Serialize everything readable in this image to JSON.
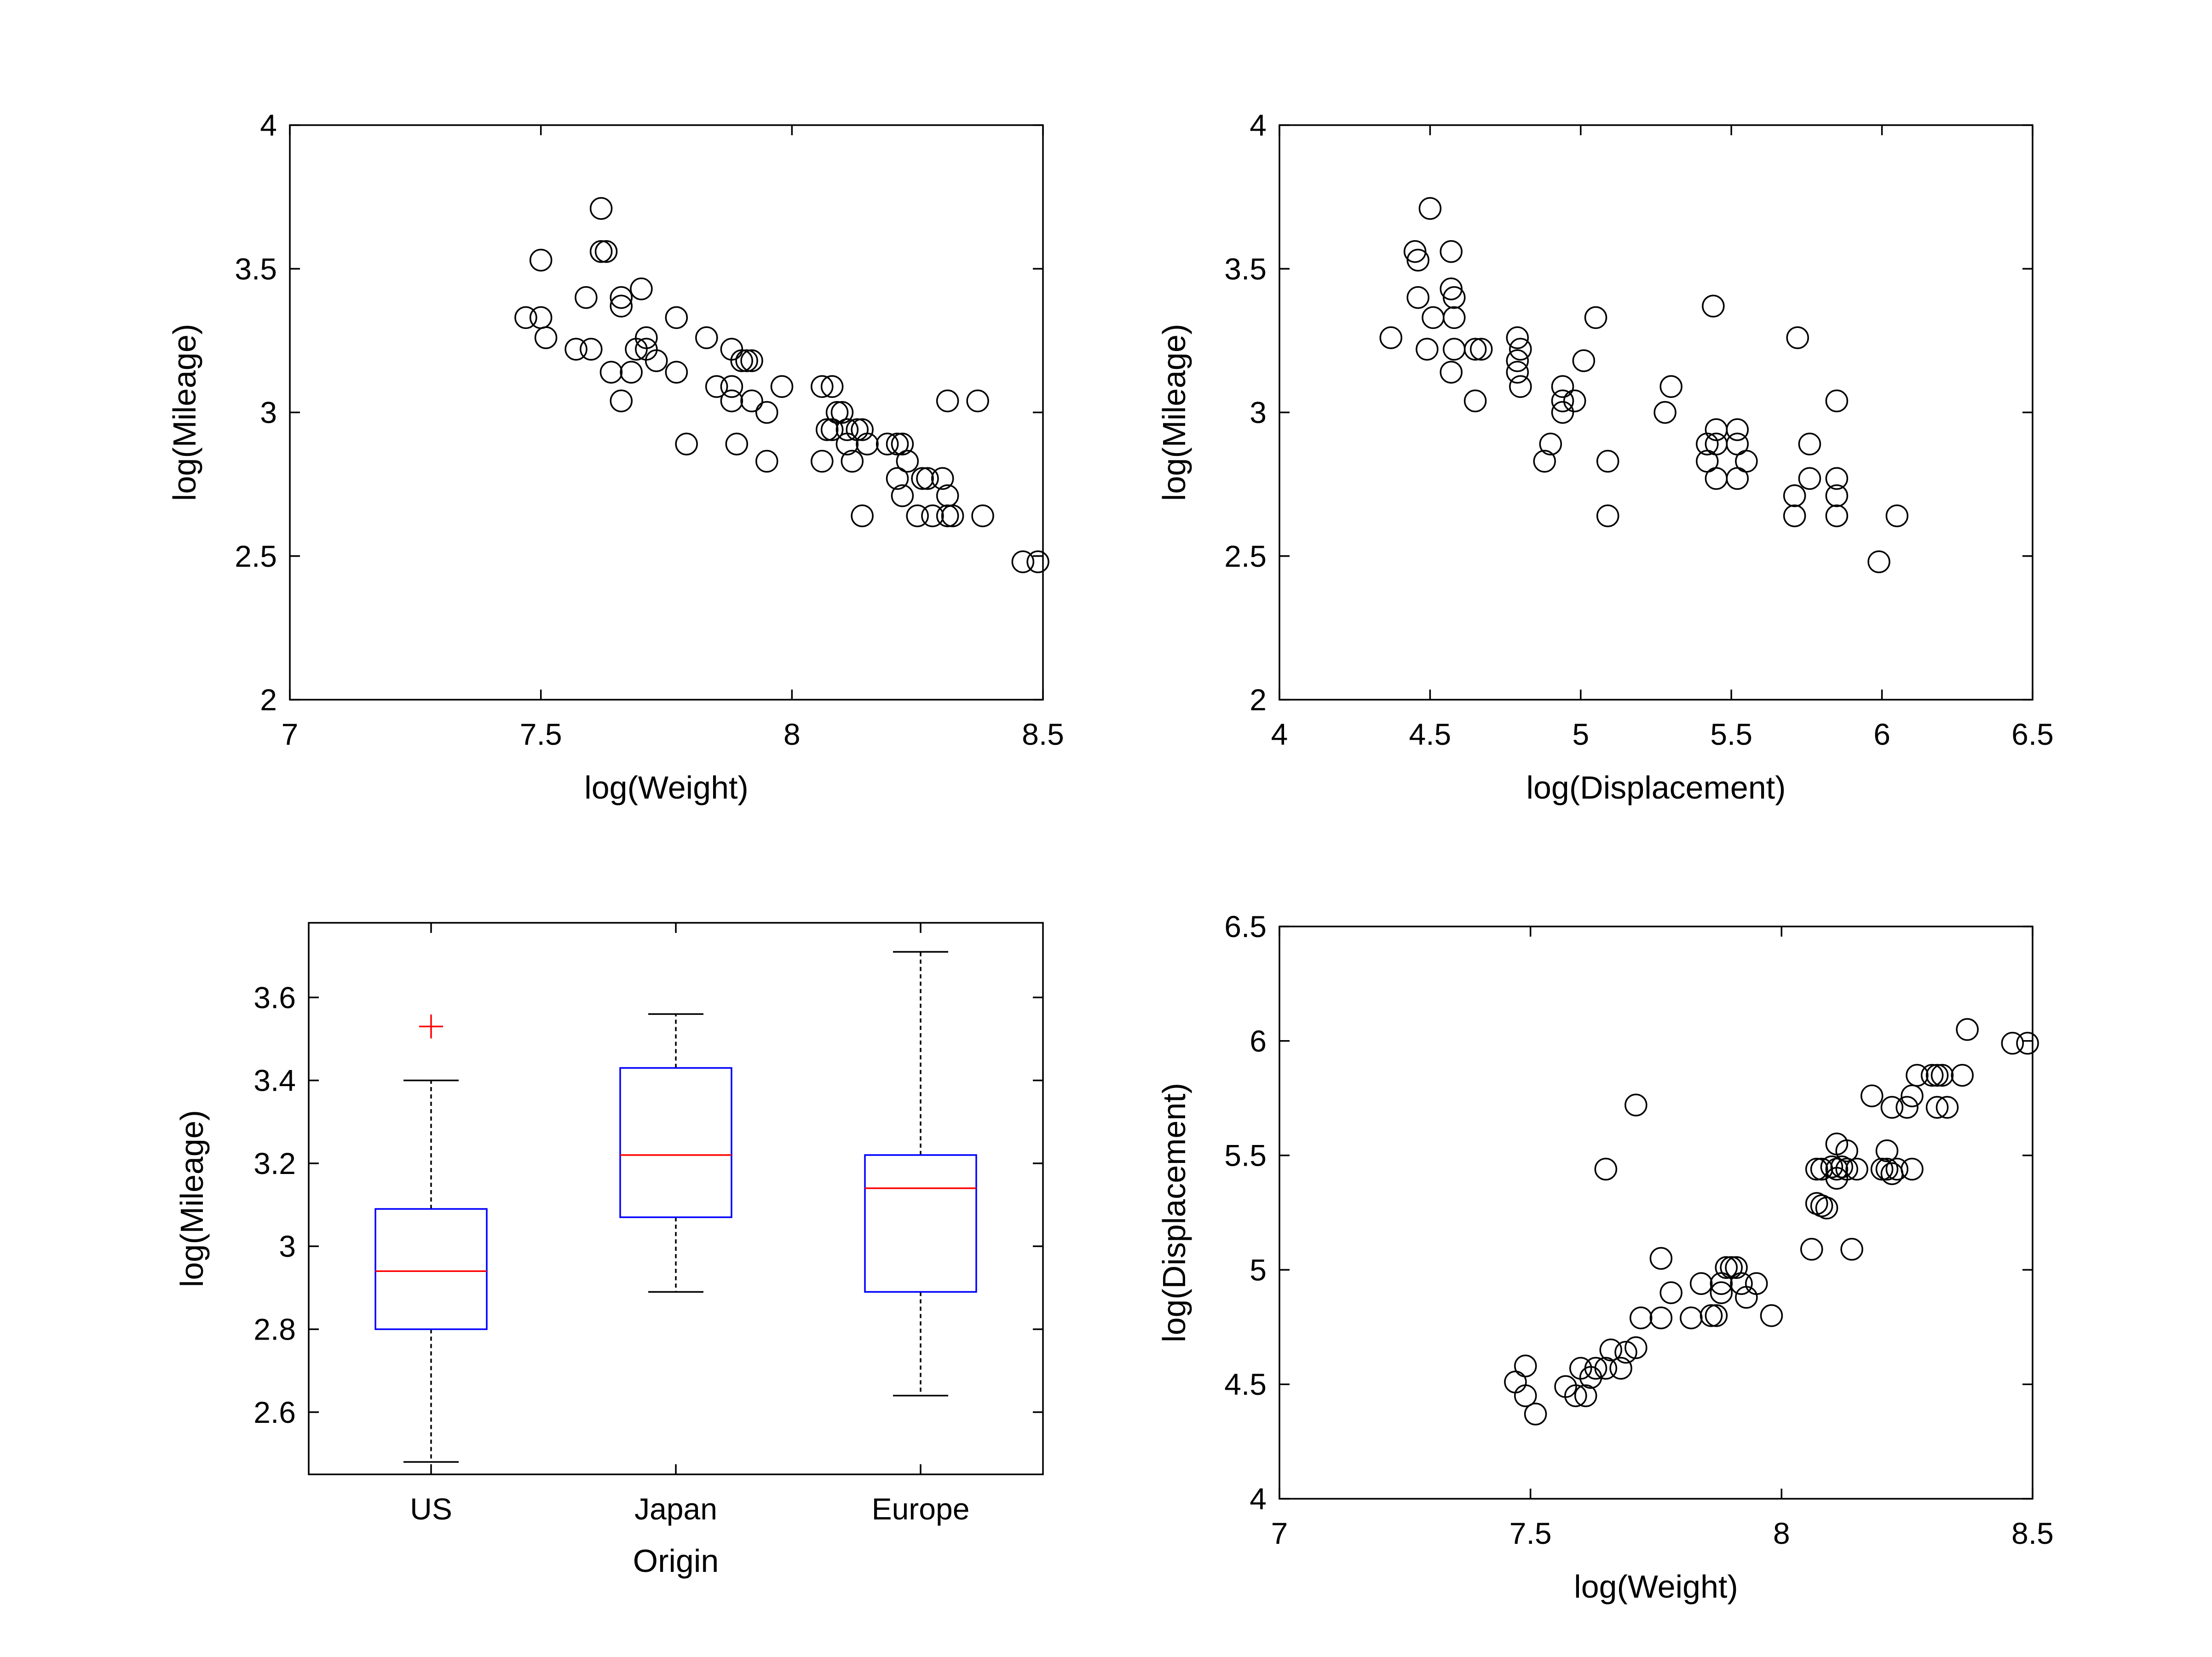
{
  "chart_data": [
    {
      "type": "scatter",
      "xlabel": "log(Weight)",
      "ylabel": "log(Mileage)",
      "xlim": [
        7,
        8.5
      ],
      "ylim": [
        2,
        4
      ],
      "xticks": [
        "7",
        "7.5",
        "8",
        "8.5"
      ],
      "yticks": [
        "2",
        "2.5",
        "3",
        "3.5",
        "4"
      ],
      "marker": "open-circle",
      "points": [
        [
          7.47,
          3.33
        ],
        [
          7.5,
          3.33
        ],
        [
          7.51,
          3.26
        ],
        [
          7.5,
          3.53
        ],
        [
          7.57,
          3.22
        ],
        [
          7.6,
          3.22
        ],
        [
          7.59,
          3.4
        ],
        [
          7.62,
          3.56
        ],
        [
          7.63,
          3.56
        ],
        [
          7.62,
          3.71
        ],
        [
          7.64,
          3.14
        ],
        [
          7.66,
          3.4
        ],
        [
          7.66,
          3.37
        ],
        [
          7.66,
          3.04
        ],
        [
          7.68,
          3.14
        ],
        [
          7.69,
          3.22
        ],
        [
          7.7,
          3.43
        ],
        [
          7.71,
          3.26
        ],
        [
          7.71,
          3.22
        ],
        [
          7.73,
          3.18
        ],
        [
          7.77,
          3.33
        ],
        [
          7.77,
          3.14
        ],
        [
          7.79,
          2.89
        ],
        [
          7.83,
          3.26
        ],
        [
          7.85,
          3.09
        ],
        [
          7.88,
          3.09
        ],
        [
          7.88,
          3.22
        ],
        [
          7.88,
          3.04
        ],
        [
          7.89,
          2.89
        ],
        [
          7.9,
          3.18
        ],
        [
          7.91,
          3.18
        ],
        [
          7.92,
          3.18
        ],
        [
          7.92,
          3.04
        ],
        [
          7.95,
          3.0
        ],
        [
          7.95,
          2.83
        ],
        [
          7.98,
          3.09
        ],
        [
          8.06,
          2.83
        ],
        [
          8.06,
          3.09
        ],
        [
          8.07,
          2.94
        ],
        [
          8.08,
          3.09
        ],
        [
          8.08,
          2.94
        ],
        [
          8.09,
          3.0
        ],
        [
          8.1,
          3.0
        ],
        [
          8.11,
          2.94
        ],
        [
          8.11,
          2.89
        ],
        [
          8.12,
          2.83
        ],
        [
          8.13,
          2.94
        ],
        [
          8.14,
          2.94
        ],
        [
          8.14,
          2.64
        ],
        [
          8.15,
          2.89
        ],
        [
          8.19,
          2.89
        ],
        [
          8.21,
          2.89
        ],
        [
          8.21,
          2.77
        ],
        [
          8.22,
          2.89
        ],
        [
          8.22,
          2.71
        ],
        [
          8.23,
          2.83
        ],
        [
          8.25,
          2.64
        ],
        [
          8.26,
          2.77
        ],
        [
          8.27,
          2.77
        ],
        [
          8.28,
          2.64
        ],
        [
          8.3,
          2.77
        ],
        [
          8.31,
          2.71
        ],
        [
          8.31,
          2.64
        ],
        [
          8.32,
          2.64
        ],
        [
          8.31,
          3.04
        ],
        [
          8.37,
          3.04
        ],
        [
          8.38,
          2.64
        ],
        [
          8.46,
          2.48
        ],
        [
          8.49,
          2.48
        ]
      ]
    },
    {
      "type": "scatter",
      "xlabel": "log(Displacement)",
      "ylabel": "log(Mileage)",
      "xlim": [
        4,
        6.5
      ],
      "ylim": [
        2,
        4
      ],
      "xticks": [
        "4",
        "4.5",
        "5",
        "5.5",
        "6",
        "6.5"
      ],
      "yticks": [
        "2",
        "2.5",
        "3",
        "3.5",
        "4"
      ],
      "marker": "open-circle",
      "points": [
        [
          4.37,
          3.26
        ],
        [
          4.45,
          3.56
        ],
        [
          4.46,
          3.53
        ],
        [
          4.46,
          3.4
        ],
        [
          4.49,
          3.22
        ],
        [
          4.5,
          3.71
        ],
        [
          4.51,
          3.33
        ],
        [
          4.57,
          3.56
        ],
        [
          4.57,
          3.43
        ],
        [
          4.58,
          3.4
        ],
        [
          4.58,
          3.33
        ],
        [
          4.58,
          3.22
        ],
        [
          4.57,
          3.14
        ],
        [
          4.65,
          3.22
        ],
        [
          4.67,
          3.22
        ],
        [
          4.65,
          3.04
        ],
        [
          4.79,
          3.26
        ],
        [
          4.79,
          3.18
        ],
        [
          4.79,
          3.14
        ],
        [
          4.8,
          3.22
        ],
        [
          4.8,
          3.09
        ],
        [
          4.88,
          2.83
        ],
        [
          4.9,
          2.89
        ],
        [
          4.94,
          3.09
        ],
        [
          4.94,
          3.04
        ],
        [
          4.94,
          3.0
        ],
        [
          4.98,
          3.04
        ],
        [
          5.01,
          3.18
        ],
        [
          5.05,
          3.33
        ],
        [
          5.09,
          2.83
        ],
        [
          5.09,
          2.64
        ],
        [
          5.28,
          3.0
        ],
        [
          5.3,
          3.09
        ],
        [
          5.42,
          2.89
        ],
        [
          5.42,
          2.83
        ],
        [
          5.44,
          3.37
        ],
        [
          5.45,
          2.94
        ],
        [
          5.45,
          2.89
        ],
        [
          5.45,
          2.77
        ],
        [
          5.52,
          2.94
        ],
        [
          5.52,
          2.89
        ],
        [
          5.52,
          2.77
        ],
        [
          5.55,
          2.83
        ],
        [
          5.71,
          2.71
        ],
        [
          5.71,
          2.64
        ],
        [
          5.72,
          3.26
        ],
        [
          5.76,
          2.89
        ],
        [
          5.76,
          2.77
        ],
        [
          5.85,
          2.77
        ],
        [
          5.85,
          2.71
        ],
        [
          5.85,
          2.64
        ],
        [
          5.85,
          3.04
        ],
        [
          5.99,
          2.48
        ],
        [
          6.05,
          2.64
        ]
      ]
    },
    {
      "type": "box",
      "xlabel": "Origin",
      "ylabel": "log(Mileage)",
      "ylim": [
        2.45,
        3.78
      ],
      "yticks": [
        "2.6",
        "2.8",
        "3",
        "3.2",
        "3.4",
        "3.6"
      ],
      "categories": [
        "US",
        "Japan",
        "Europe"
      ],
      "box_color": "#0000ff",
      "median_color": "#ff0000",
      "outlier_color": "#ff0000",
      "stats": [
        {
          "whisker_low": 2.48,
          "q1": 2.8,
          "median": 2.94,
          "q3": 3.09,
          "whisker_high": 3.4,
          "outliers": [
            3.53
          ]
        },
        {
          "whisker_low": 2.89,
          "q1": 3.07,
          "median": 3.22,
          "q3": 3.43,
          "whisker_high": 3.56,
          "outliers": []
        },
        {
          "whisker_low": 2.64,
          "q1": 2.89,
          "median": 3.14,
          "q3": 3.22,
          "whisker_high": 3.71,
          "outliers": []
        }
      ]
    },
    {
      "type": "scatter",
      "xlabel": "log(Weight)",
      "ylabel": "log(Displacement)",
      "xlim": [
        7,
        8.5
      ],
      "ylim": [
        4,
        6.5
      ],
      "xticks": [
        "7",
        "7.5",
        "8",
        "8.5"
      ],
      "yticks": [
        "4",
        "4.5",
        "5",
        "5.5",
        "6",
        "6.5"
      ],
      "marker": "open-circle",
      "points": [
        [
          7.47,
          4.51
        ],
        [
          7.49,
          4.58
        ],
        [
          7.49,
          4.45
        ],
        [
          7.51,
          4.37
        ],
        [
          7.57,
          4.49
        ],
        [
          7.59,
          4.45
        ],
        [
          7.61,
          4.45
        ],
        [
          7.6,
          4.57
        ],
        [
          7.62,
          4.53
        ],
        [
          7.63,
          4.57
        ],
        [
          7.65,
          4.57
        ],
        [
          7.66,
          4.65
        ],
        [
          7.68,
          4.57
        ],
        [
          7.69,
          4.64
        ],
        [
          7.71,
          4.66
        ],
        [
          7.72,
          4.79
        ],
        [
          7.65,
          5.44
        ],
        [
          7.71,
          5.72
        ],
        [
          7.76,
          4.79
        ],
        [
          7.76,
          5.05
        ],
        [
          7.78,
          4.9
        ],
        [
          7.82,
          4.79
        ],
        [
          7.84,
          4.94
        ],
        [
          7.86,
          4.8
        ],
        [
          7.87,
          4.8
        ],
        [
          7.88,
          4.94
        ],
        [
          7.88,
          4.9
        ],
        [
          7.89,
          5.01
        ],
        [
          7.9,
          5.01
        ],
        [
          7.91,
          5.01
        ],
        [
          7.92,
          4.94
        ],
        [
          7.93,
          4.88
        ],
        [
          7.95,
          4.94
        ],
        [
          7.98,
          4.8
        ],
        [
          8.06,
          5.09
        ],
        [
          8.07,
          5.29
        ],
        [
          8.08,
          5.28
        ],
        [
          8.09,
          5.27
        ],
        [
          8.07,
          5.44
        ],
        [
          8.08,
          5.44
        ],
        [
          8.1,
          5.45
        ],
        [
          8.11,
          5.4
        ],
        [
          8.11,
          5.44
        ],
        [
          8.12,
          5.45
        ],
        [
          8.11,
          5.55
        ],
        [
          8.13,
          5.44
        ],
        [
          8.13,
          5.52
        ],
        [
          8.14,
          5.09
        ],
        [
          8.15,
          5.44
        ],
        [
          8.18,
          5.76
        ],
        [
          8.2,
          5.44
        ],
        [
          8.21,
          5.44
        ],
        [
          8.21,
          5.52
        ],
        [
          8.22,
          5.71
        ],
        [
          8.22,
          5.42
        ],
        [
          8.23,
          5.44
        ],
        [
          8.25,
          5.71
        ],
        [
          8.26,
          5.76
        ],
        [
          8.27,
          5.85
        ],
        [
          8.26,
          5.44
        ],
        [
          8.3,
          5.85
        ],
        [
          8.31,
          5.85
        ],
        [
          8.31,
          5.71
        ],
        [
          8.32,
          5.85
        ],
        [
          8.33,
          5.71
        ],
        [
          8.36,
          5.85
        ],
        [
          8.37,
          6.05
        ],
        [
          8.46,
          5.99
        ],
        [
          8.49,
          5.99
        ]
      ]
    }
  ]
}
